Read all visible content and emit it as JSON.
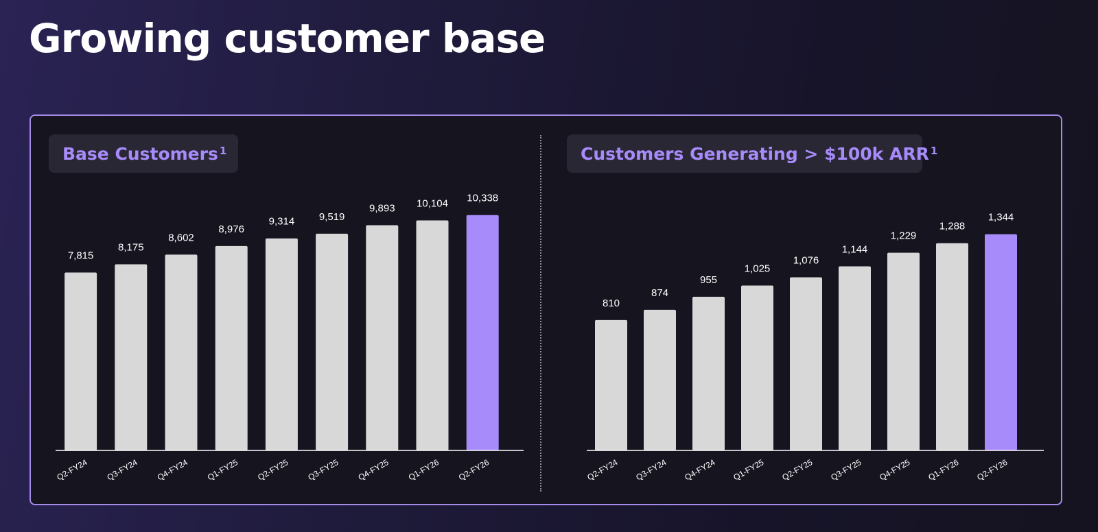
{
  "page": {
    "title": "Growing customer base"
  },
  "colors": {
    "accent": "#a78bfa",
    "bar_default": "#d8d8d8",
    "bar_highlight": "#a78bfa",
    "panel_border": "#a58be8",
    "title_text": "#a78bfa"
  },
  "chart_data": [
    {
      "type": "bar",
      "title": "Base Customers",
      "title_footnote": "1",
      "categories": [
        "Q2-FY24",
        "Q3-FY24",
        "Q4-FY24",
        "Q1-FY25",
        "Q2-FY25",
        "Q3-FY25",
        "Q4-FY25",
        "Q1-FY26",
        "Q2-FY26"
      ],
      "values": [
        7815,
        8175,
        8602,
        8976,
        9314,
        9519,
        9893,
        10104,
        10338
      ],
      "value_labels": [
        "7,815",
        "8,175",
        "8,602",
        "8,976",
        "9,314",
        "9,519",
        "9,893",
        "10,104",
        "10,338"
      ],
      "highlight_index": 8,
      "ylim": [
        0,
        10600
      ],
      "grid": false,
      "legend": "none"
    },
    {
      "type": "bar",
      "title": "Customers Generating > $100k ARR",
      "title_footnote": "1",
      "categories": [
        "Q2-FY24",
        "Q3-FY24",
        "Q4-FY24",
        "Q1-FY25",
        "Q2-FY25",
        "Q3-FY25",
        "Q4-FY25",
        "Q1-FY26",
        "Q2-FY26"
      ],
      "values": [
        810,
        874,
        955,
        1025,
        1076,
        1144,
        1229,
        1288,
        1344
      ],
      "value_labels": [
        "810",
        "874",
        "955",
        "1,025",
        "1,076",
        "1,144",
        "1,229",
        "1,288",
        "1,344"
      ],
      "highlight_index": 8,
      "ylim": [
        0,
        1500
      ],
      "grid": false,
      "legend": "none"
    }
  ]
}
